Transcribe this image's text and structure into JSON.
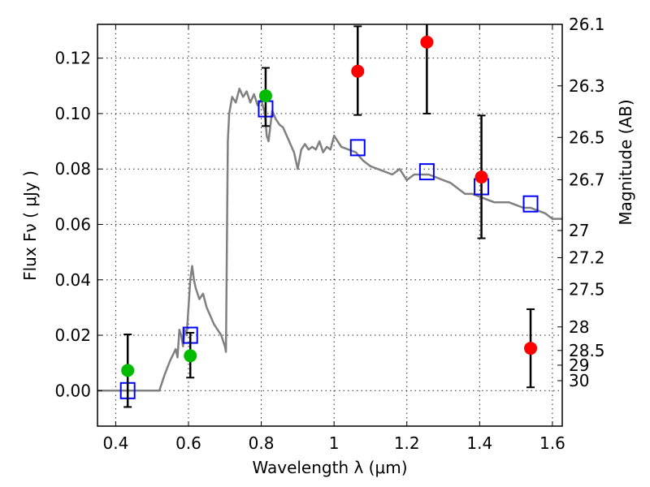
{
  "chart_data": {
    "type": "scatter",
    "title": "",
    "xlabel": "Wavelength  λ (μm)",
    "ylabel": "Flux  Fν  ( μJy )",
    "ylabel_right": "Magnitude (AB)",
    "xlim": [
      0.35,
      1.627
    ],
    "ylim": [
      -0.0128,
      0.1322
    ],
    "grid": true,
    "legend": "none",
    "xticks": [
      0.4,
      0.6,
      0.8,
      1.0,
      1.2,
      1.4,
      1.6
    ],
    "xtick_labels": [
      "0.4",
      "0.6",
      "0.8",
      "1",
      "1.2",
      "1.4",
      "1.6"
    ],
    "yticks": [
      0.0,
      0.02,
      0.04,
      0.06,
      0.08,
      0.1,
      0.12
    ],
    "ytick_labels": [
      "0.00",
      "0.02",
      "0.04",
      "0.06",
      "0.08",
      "0.10",
      "0.12"
    ],
    "right_ticks": [
      {
        "label": "26.1",
        "flux": 0.1322
      },
      {
        "label": "26.3",
        "flux": 0.11
      },
      {
        "label": "26.5",
        "flux": 0.0914
      },
      {
        "label": "26.7",
        "flux": 0.0761
      },
      {
        "label": "27",
        "flux": 0.0578
      },
      {
        "label": "27.2",
        "flux": 0.048
      },
      {
        "label": "27.5",
        "flux": 0.0365
      },
      {
        "label": "28",
        "flux": 0.023
      },
      {
        "label": "28.5",
        "flux": 0.0145
      },
      {
        "label": "29",
        "flux": 0.0092
      },
      {
        "label": "30",
        "flux": 0.0036
      }
    ],
    "colors": {
      "spectrum": "#808080",
      "model_points": "#0000ff",
      "detections_green": "#00bb00",
      "detections_red": "#ff0000",
      "errorbar": "#000000"
    },
    "series": [
      {
        "name": "model spectrum",
        "kind": "line",
        "x": [
          0.35,
          0.52,
          0.535,
          0.55,
          0.565,
          0.57,
          0.575,
          0.58,
          0.585,
          0.59,
          0.595,
          0.6,
          0.605,
          0.61,
          0.615,
          0.62,
          0.63,
          0.64,
          0.65,
          0.66,
          0.67,
          0.68,
          0.69,
          0.7,
          0.703,
          0.708,
          0.712,
          0.72,
          0.73,
          0.74,
          0.75,
          0.76,
          0.77,
          0.78,
          0.79,
          0.8,
          0.81,
          0.815,
          0.82,
          0.83,
          0.84,
          0.85,
          0.86,
          0.87,
          0.88,
          0.89,
          0.9,
          0.91,
          0.92,
          0.93,
          0.94,
          0.95,
          0.96,
          0.97,
          0.98,
          0.99,
          1.0,
          1.02,
          1.04,
          1.06,
          1.08,
          1.1,
          1.12,
          1.14,
          1.16,
          1.18,
          1.2,
          1.22,
          1.24,
          1.26,
          1.28,
          1.3,
          1.32,
          1.34,
          1.36,
          1.38,
          1.4,
          1.42,
          1.44,
          1.46,
          1.48,
          1.5,
          1.52,
          1.54,
          1.56,
          1.58,
          1.6,
          1.627
        ],
        "y": [
          0.0,
          0.0,
          0.006,
          0.011,
          0.015,
          0.012,
          0.022,
          0.02,
          0.016,
          0.022,
          0.02,
          0.03,
          0.04,
          0.045,
          0.04,
          0.037,
          0.033,
          0.035,
          0.03,
          0.027,
          0.024,
          0.022,
          0.02,
          0.016,
          0.014,
          0.09,
          0.1,
          0.106,
          0.104,
          0.109,
          0.106,
          0.108,
          0.104,
          0.107,
          0.103,
          0.105,
          0.1,
          0.092,
          0.09,
          0.101,
          0.098,
          0.096,
          0.095,
          0.092,
          0.089,
          0.086,
          0.08,
          0.087,
          0.089,
          0.087,
          0.088,
          0.087,
          0.09,
          0.086,
          0.088,
          0.087,
          0.092,
          0.088,
          0.087,
          0.086,
          0.083,
          0.081,
          0.08,
          0.079,
          0.078,
          0.08,
          0.076,
          0.078,
          0.078,
          0.078,
          0.077,
          0.076,
          0.075,
          0.073,
          0.071,
          0.071,
          0.07,
          0.069,
          0.068,
          0.068,
          0.068,
          0.067,
          0.066,
          0.066,
          0.065,
          0.064,
          0.062,
          0.062
        ]
      },
      {
        "name": "model photometry",
        "kind": "open-square",
        "x": [
          0.433,
          0.605,
          0.812,
          1.065,
          1.255,
          1.405,
          1.54
        ],
        "y": [
          0.0,
          0.02,
          0.1017,
          0.0877,
          0.079,
          0.0736,
          0.0674
        ]
      },
      {
        "name": "observed (green)",
        "kind": "filled-circle",
        "color_key": "detections_green",
        "x": [
          0.433,
          0.605,
          0.812
        ],
        "y": [
          0.0073,
          0.0126,
          0.1064
        ],
        "err_low": [
          -0.0059,
          0.0047,
          0.0955
        ],
        "err_high": [
          0.0203,
          0.0209,
          0.1165
        ]
      },
      {
        "name": "observed (red)",
        "kind": "filled-circle",
        "color_key": "detections_red",
        "x": [
          1.065,
          1.255,
          1.405,
          1.54
        ],
        "y": [
          0.1153,
          0.1258,
          0.0771,
          0.0153
        ],
        "err_low": [
          0.0995,
          0.1,
          0.055,
          0.0012
        ],
        "err_high": [
          0.1315,
          0.145,
          0.0993,
          0.0294
        ]
      }
    ]
  }
}
